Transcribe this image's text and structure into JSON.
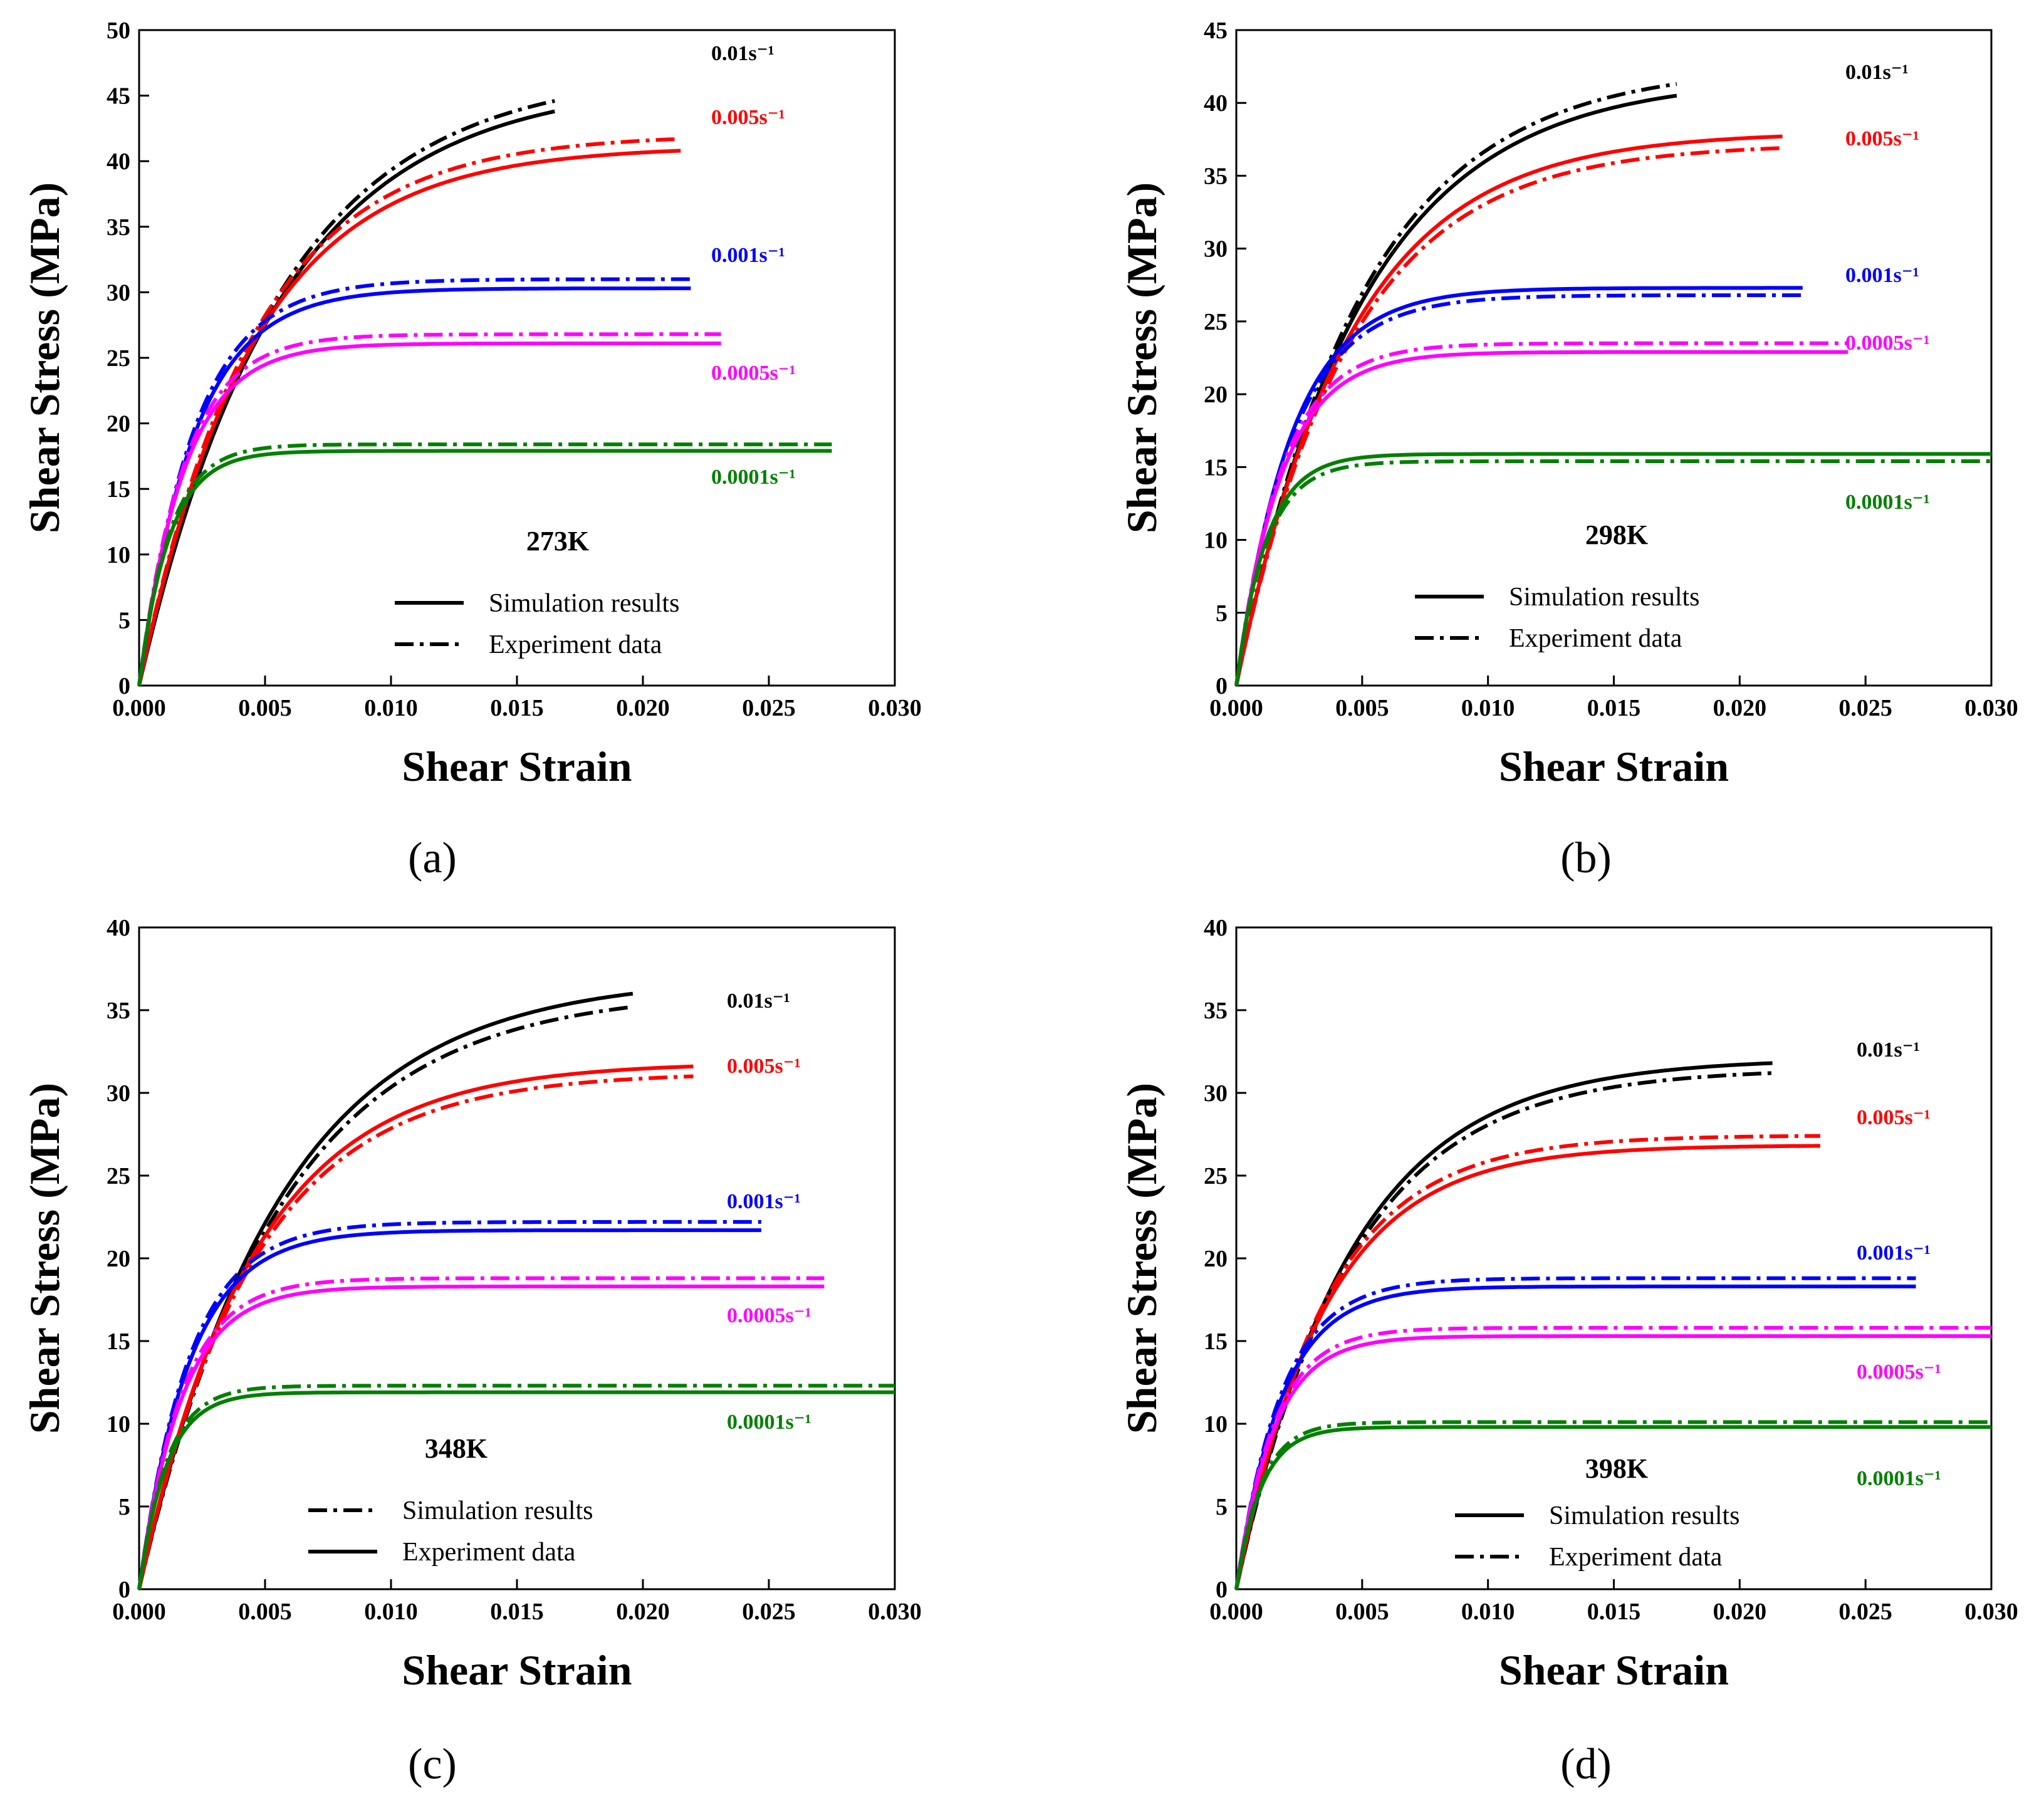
{
  "chart_data": [
    {
      "type": "line",
      "panel_label": "(a)",
      "temperature": "273K",
      "xlabel": "Shear Strain",
      "ylabel": "Shear Stress (MPa)",
      "xlim": [
        0,
        0.03
      ],
      "ylim": [
        0,
        50
      ],
      "xticks": [
        "0.000",
        "0.005",
        "0.010",
        "0.015",
        "0.020",
        "0.025",
        "0.030"
      ],
      "yticks": [
        "0",
        "5",
        "10",
        "15",
        "20",
        "25",
        "30",
        "35",
        "40",
        "45",
        "50"
      ],
      "legend": {
        "solid": "Simulation results",
        "dashdot": "Experiment data"
      },
      "series": [
        {
          "name": "0.01s⁻¹",
          "color": "#000000",
          "end_x": 0.0165,
          "sim_end": 43.8,
          "exp_end": 44.6,
          "k": 0.0055
        },
        {
          "name": "0.005s⁻¹",
          "color": "#ff0000",
          "end_x": 0.0215,
          "sim_end": 40.8,
          "exp_end": 41.7,
          "k": 0.0045
        },
        {
          "name": "0.001s⁻¹",
          "color": "#0000ff",
          "end_x": 0.0219,
          "sim_end": 30.3,
          "exp_end": 31.0,
          "k": 0.0022
        },
        {
          "name": "0.0005s⁻¹",
          "color": "#ff00ff",
          "end_x": 0.0231,
          "sim_end": 26.1,
          "exp_end": 26.8,
          "k": 0.0018
        },
        {
          "name": "0.0001s⁻¹",
          "color": "#008000",
          "end_x": 0.0275,
          "sim_end": 17.9,
          "exp_end": 18.4,
          "k": 0.0012
        }
      ]
    },
    {
      "type": "line",
      "panel_label": "(b)",
      "temperature": "298K",
      "xlabel": "Shear Strain",
      "ylabel": "Shear Stress (MPa)",
      "xlim": [
        0,
        0.03
      ],
      "ylim": [
        0,
        45
      ],
      "xticks": [
        "0.000",
        "0.005",
        "0.010",
        "0.015",
        "0.020",
        "0.025",
        "0.030"
      ],
      "yticks": [
        "0",
        "5",
        "10",
        "15",
        "20",
        "25",
        "30",
        "35",
        "40",
        "45"
      ],
      "legend": {
        "solid": "Simulation results",
        "dashdot": "Experiment data"
      },
      "series": [
        {
          "name": "0.01s⁻¹",
          "color": "#000000",
          "end_x": 0.0175,
          "sim_end": 40.5,
          "exp_end": 41.3,
          "k": 0.005
        },
        {
          "name": "0.005s⁻¹",
          "color": "#ff0000",
          "end_x": 0.0217,
          "sim_end": 37.7,
          "exp_end": 36.9,
          "k": 0.0045
        },
        {
          "name": "0.001s⁻¹",
          "color": "#0000ff",
          "end_x": 0.0225,
          "sim_end": 27.3,
          "exp_end": 26.8,
          "k": 0.0022
        },
        {
          "name": "0.0005s⁻¹",
          "color": "#ff00ff",
          "end_x": 0.0243,
          "sim_end": 22.9,
          "exp_end": 23.5,
          "k": 0.0018
        },
        {
          "name": "0.0001s⁻¹",
          "color": "#008000",
          "end_x": 0.03,
          "sim_end": 15.9,
          "exp_end": 15.4,
          "k": 0.0012
        }
      ]
    },
    {
      "type": "line",
      "panel_label": "(c)",
      "temperature": "348K",
      "xlabel": "Shear Strain",
      "ylabel": "Shear Stress (MPa)",
      "xlim": [
        0,
        0.03
      ],
      "ylim": [
        0,
        40
      ],
      "xticks": [
        "0.000",
        "0.005",
        "0.010",
        "0.015",
        "0.020",
        "0.025",
        "0.030"
      ],
      "yticks": [
        "0",
        "5",
        "10",
        "15",
        "20",
        "25",
        "30",
        "35",
        "40"
      ],
      "legend": {
        "dashdot": "Simulation results",
        "solid": "Experiment data",
        "dashdot_first": true
      },
      "series": [
        {
          "name": "0.01s⁻¹",
          "color": "#000000",
          "end_x": 0.0196,
          "sim_end": 36.0,
          "exp_end": 35.2,
          "k": 0.0055
        },
        {
          "name": "0.005s⁻¹",
          "color": "#ff0000",
          "end_x": 0.022,
          "sim_end": 31.6,
          "exp_end": 31.0,
          "k": 0.0045
        },
        {
          "name": "0.001s⁻¹",
          "color": "#0000ff",
          "end_x": 0.0247,
          "sim_end": 21.7,
          "exp_end": 22.2,
          "k": 0.002
        },
        {
          "name": "0.0005s⁻¹",
          "color": "#ff00ff",
          "end_x": 0.0272,
          "sim_end": 18.3,
          "exp_end": 18.8,
          "k": 0.0017
        },
        {
          "name": "0.0001s⁻¹",
          "color": "#008000",
          "end_x": 0.03,
          "sim_end": 11.9,
          "exp_end": 12.3,
          "k": 0.0011
        }
      ]
    },
    {
      "type": "line",
      "panel_label": "(d)",
      "temperature": "398K",
      "xlabel": "Shear Strain",
      "ylabel": "Shear Stress (MPa)",
      "xlim": [
        0,
        0.03
      ],
      "ylim": [
        0,
        40
      ],
      "xticks": [
        "0.000",
        "0.005",
        "0.010",
        "0.015",
        "0.020",
        "0.025",
        "0.030"
      ],
      "yticks": [
        "0",
        "5",
        "10",
        "15",
        "20",
        "25",
        "30",
        "35",
        "40"
      ],
      "legend": {
        "solid": "Simulation results",
        "dashdot": "Experiment data"
      },
      "series": [
        {
          "name": "0.01s⁻¹",
          "color": "#000000",
          "end_x": 0.0213,
          "sim_end": 31.8,
          "exp_end": 31.2,
          "k": 0.0045
        },
        {
          "name": "0.005s⁻¹",
          "color": "#ff0000",
          "end_x": 0.0232,
          "sim_end": 26.8,
          "exp_end": 27.4,
          "k": 0.0035
        },
        {
          "name": "0.001s⁻¹",
          "color": "#0000ff",
          "end_x": 0.027,
          "sim_end": 18.3,
          "exp_end": 18.8,
          "k": 0.0018
        },
        {
          "name": "0.0005s⁻¹",
          "color": "#ff00ff",
          "end_x": 0.03,
          "sim_end": 15.3,
          "exp_end": 15.8,
          "k": 0.0015
        },
        {
          "name": "0.0001s⁻¹",
          "color": "#008000",
          "end_x": 0.03,
          "sim_end": 9.8,
          "exp_end": 10.1,
          "k": 0.001
        }
      ]
    }
  ]
}
